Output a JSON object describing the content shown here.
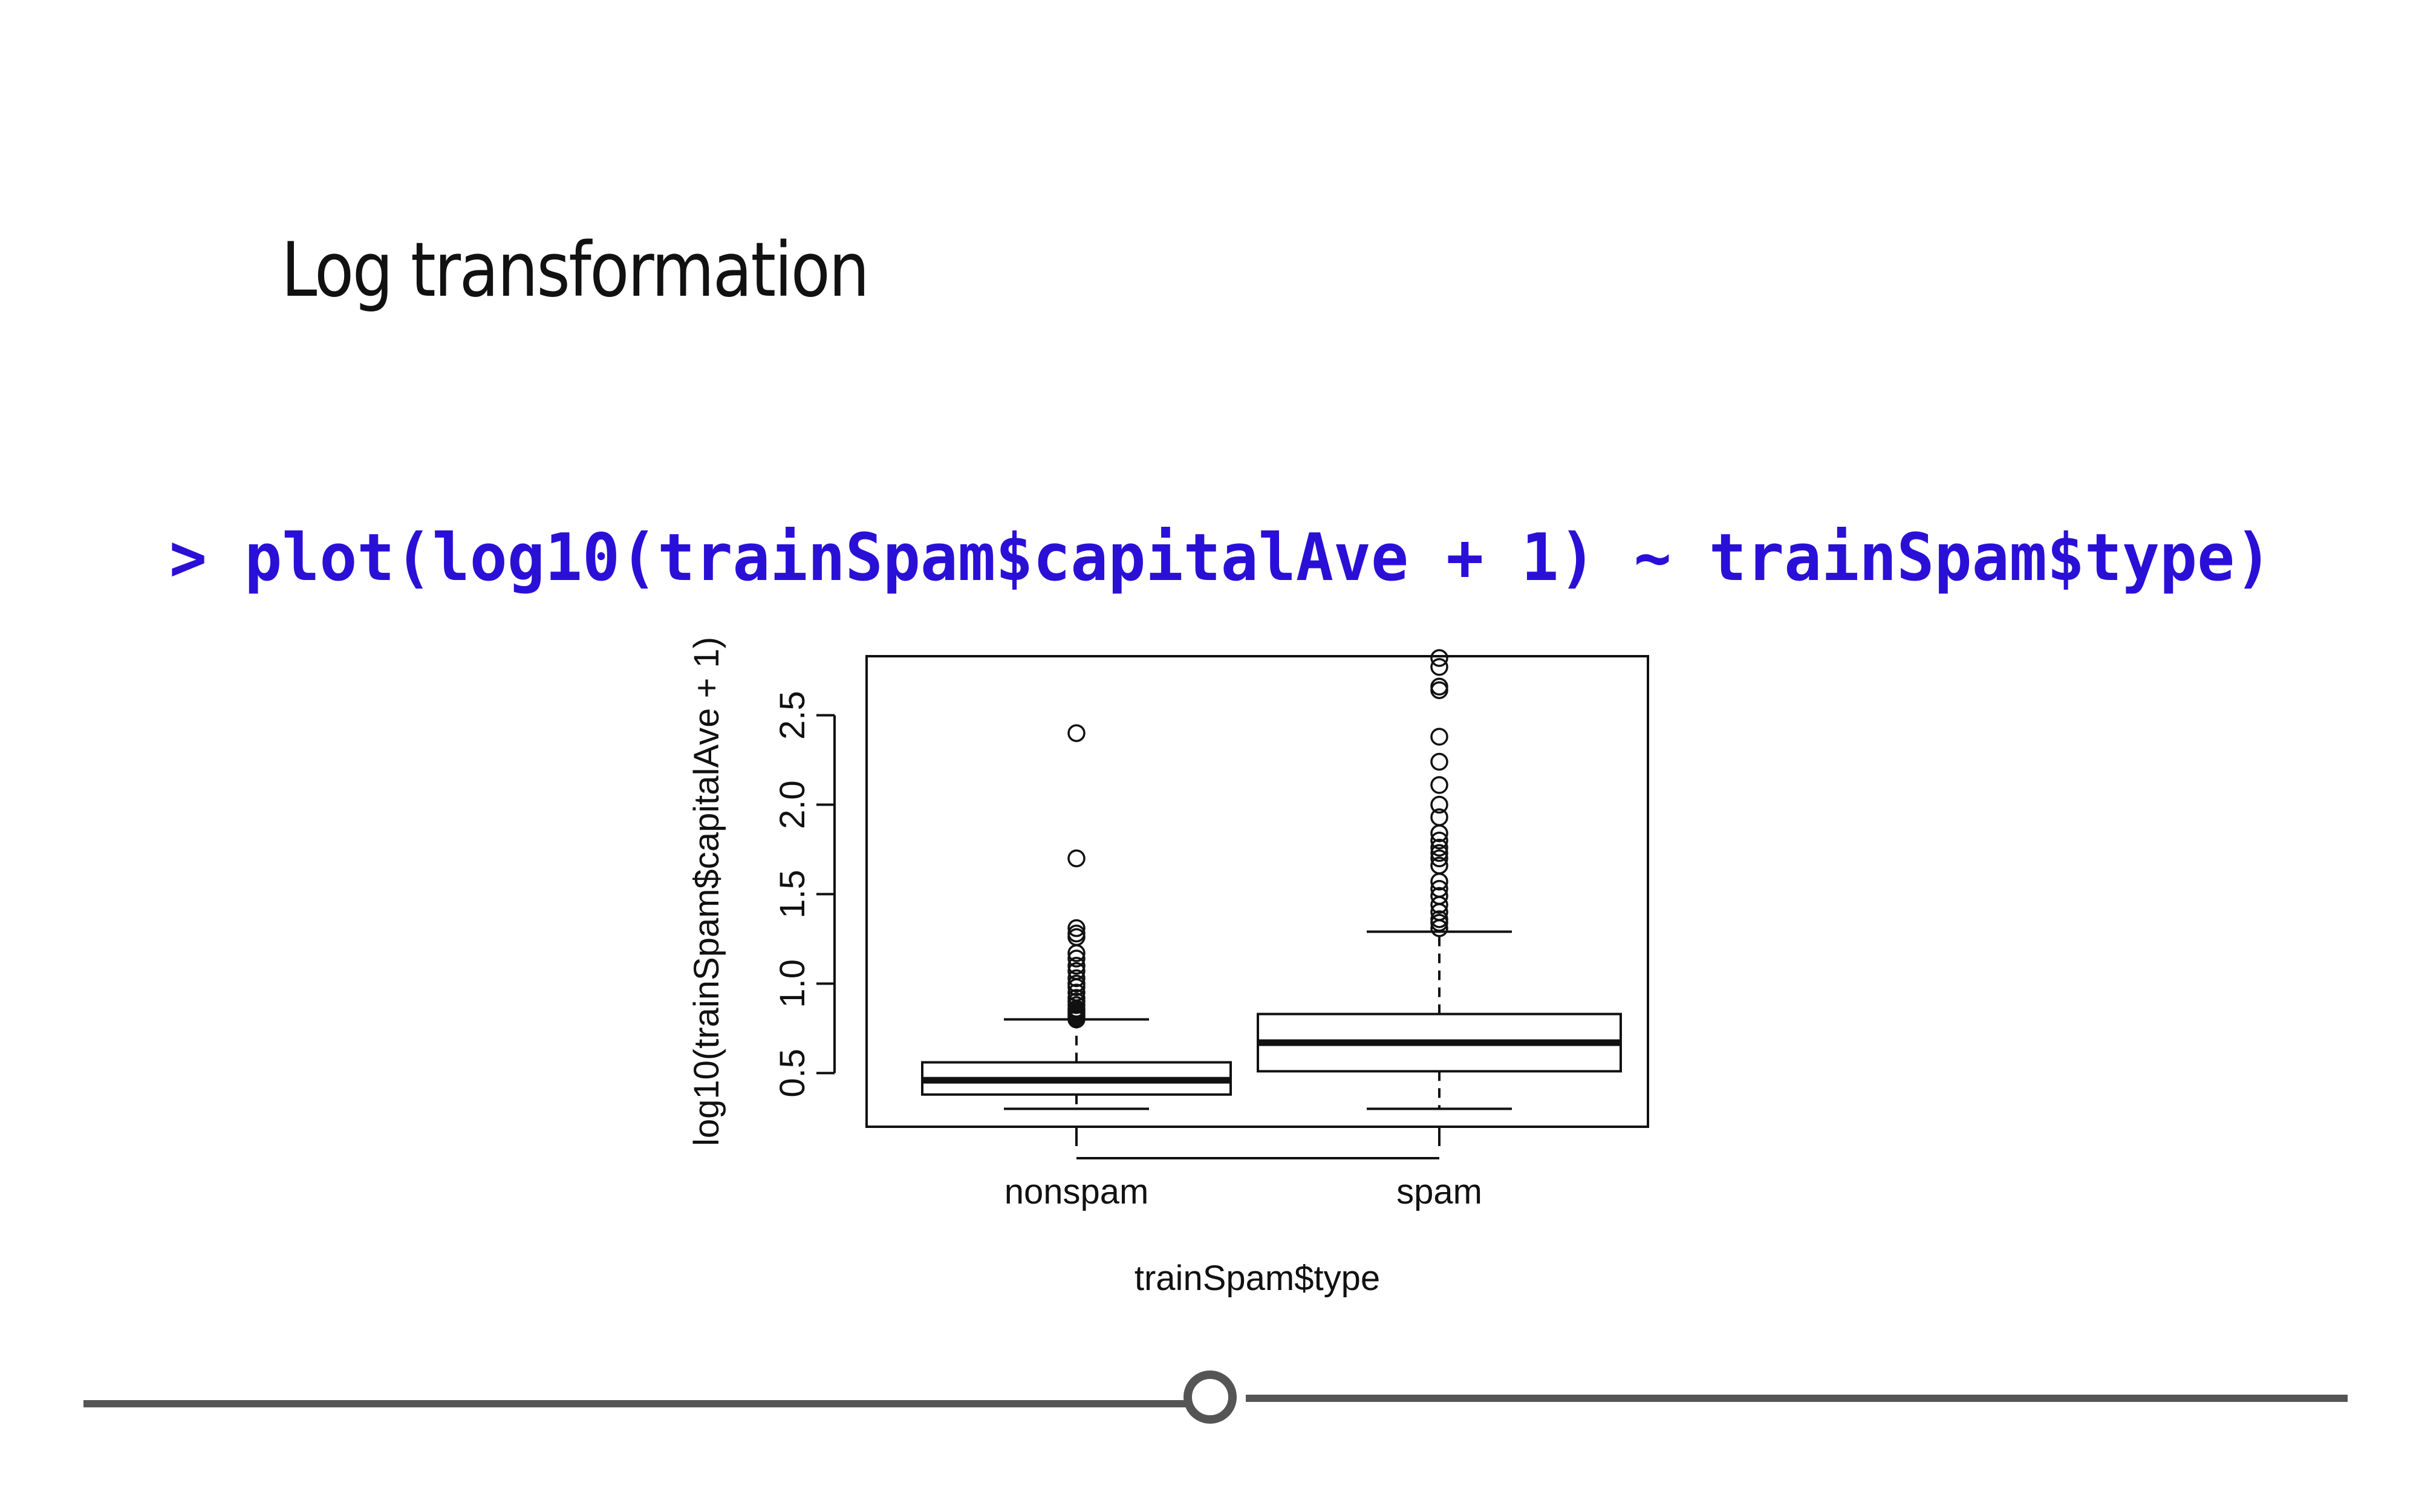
{
  "slide": {
    "title": "Log transformation",
    "code": "> plot(log10(trainSpam$capitalAve + 1) ~ trainSpam$type)"
  },
  "colors": {
    "code": "#2a10d6",
    "title": "#111111",
    "divider": "#555555"
  },
  "chart_data": {
    "type": "boxplot",
    "xlabel": "trainSpam$type",
    "ylabel": "log10(trainSpam$capitalAve + 1)",
    "categories": [
      "nonspam",
      "spam"
    ],
    "ylim": [
      0.2,
      2.83
    ],
    "yticks": [
      0.5,
      1.0,
      1.5,
      2.0,
      2.5
    ],
    "ytick_labels": [
      "0.5",
      "1.0",
      "1.5",
      "2.0",
      "2.5"
    ],
    "boxes": [
      {
        "category": "nonspam",
        "whisker_low": 0.3,
        "q1": 0.38,
        "median": 0.46,
        "q3": 0.56,
        "whisker_high": 0.8,
        "outliers": [
          0.8,
          0.81,
          0.82,
          0.83,
          0.84,
          0.85,
          0.86,
          0.88,
          0.9,
          0.92,
          0.95,
          0.98,
          1.0,
          1.03,
          1.07,
          1.1,
          1.14,
          1.17,
          1.26,
          1.28,
          1.31,
          1.7,
          2.4
        ]
      },
      {
        "category": "spam",
        "whisker_low": 0.3,
        "q1": 0.51,
        "median": 0.67,
        "q3": 0.83,
        "whisker_high": 1.29,
        "outliers": [
          1.31,
          1.34,
          1.36,
          1.4,
          1.44,
          1.49,
          1.53,
          1.57,
          1.66,
          1.7,
          1.73,
          1.76,
          1.8,
          1.84,
          1.93,
          2.0,
          2.11,
          2.24,
          2.38,
          2.64,
          2.66,
          2.77,
          2.82
        ]
      }
    ]
  }
}
